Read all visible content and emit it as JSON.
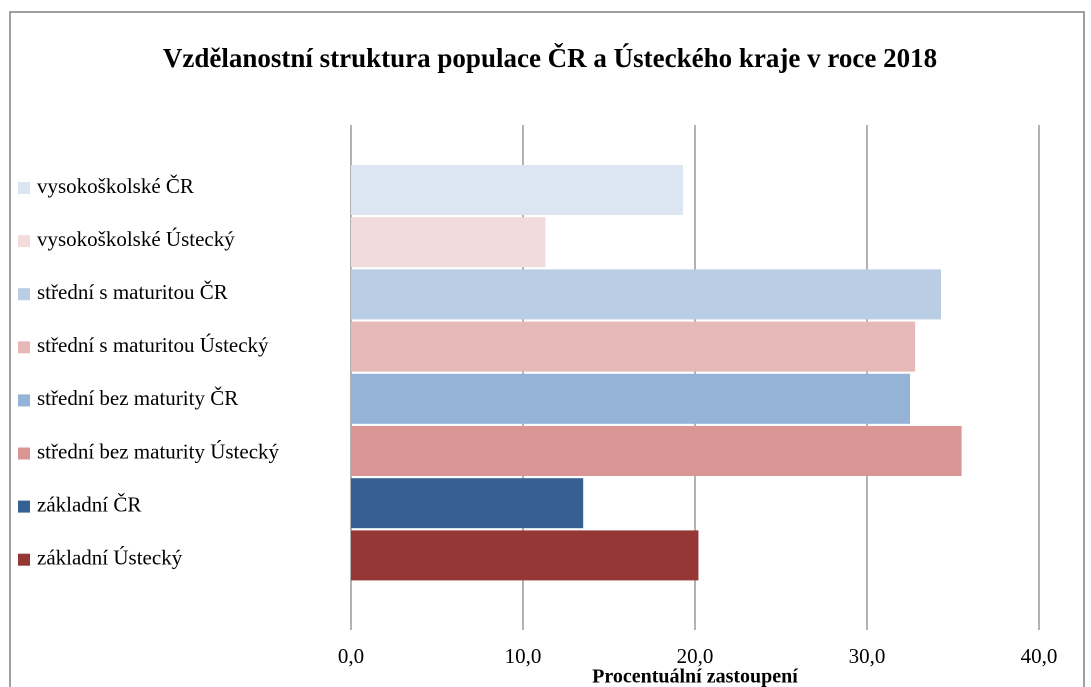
{
  "chart_data": {
    "type": "bar",
    "orientation": "horizontal",
    "title": "Vzdělanostní struktura populace ČR a Ústeckého kraje v roce 2018",
    "xlabel": "Procentuální zastoupení",
    "categories": [
      null
    ],
    "series": [
      {
        "name": "vysokoškolské ČR",
        "color": "#dce6f2",
        "values": [
          19.3
        ]
      },
      {
        "name": "vysokoškolské Ústecký",
        "color": "#f2dcdb",
        "values": [
          11.3
        ]
      },
      {
        "name": "střední s maturitou ČR",
        "color": "#b9cde5",
        "values": [
          34.3
        ]
      },
      {
        "name": "střední s maturitou Ústecký",
        "color": "#e6b9b8",
        "values": [
          32.8
        ]
      },
      {
        "name": "střední bez maturity ČR",
        "color": "#95b3d7",
        "values": [
          32.5
        ]
      },
      {
        "name": "střední bez maturity Ústecký",
        "color": "#d99694",
        "values": [
          35.5
        ]
      },
      {
        "name": "základní ČR",
        "color": "#376092",
        "values": [
          13.5
        ]
      },
      {
        "name": "základní Ústecký",
        "color": "#953735",
        "values": [
          20.2
        ]
      }
    ],
    "xlim": [
      0,
      40
    ],
    "xticks": [
      {
        "value": 0,
        "label": "0,0"
      },
      {
        "value": 10,
        "label": "10,0"
      },
      {
        "value": 20,
        "label": "20,0"
      },
      {
        "value": 30,
        "label": "30,0"
      },
      {
        "value": 40,
        "label": "40,0"
      }
    ],
    "grid": true,
    "legend": "left"
  }
}
